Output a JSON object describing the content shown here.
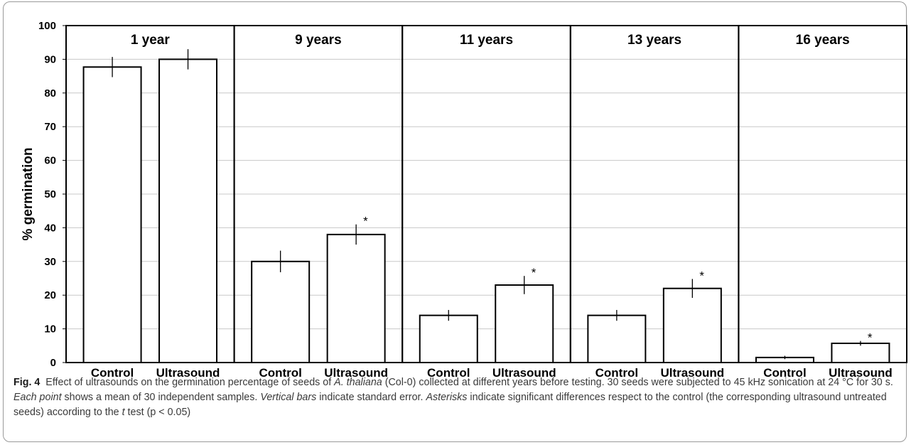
{
  "chart_data": {
    "type": "bar",
    "ylabel": "% germination",
    "ylim": [
      0,
      100
    ],
    "yticks": [
      0,
      10,
      20,
      30,
      40,
      50,
      60,
      70,
      80,
      90,
      100
    ],
    "grid": true,
    "panels": [
      {
        "title": "1 year",
        "categories": [
          "Control",
          "Ultrasound"
        ],
        "values": [
          87.7,
          90.0
        ],
        "errors": [
          3.0,
          3.0
        ],
        "significant": [
          false,
          false
        ]
      },
      {
        "title": "9 years",
        "categories": [
          "Control",
          "Ultrasound"
        ],
        "values": [
          30.0,
          38.0
        ],
        "errors": [
          3.2,
          3.0
        ],
        "significant": [
          false,
          true
        ]
      },
      {
        "title": "11 years",
        "categories": [
          "Control",
          "Ultrasound"
        ],
        "values": [
          14.0,
          23.0
        ],
        "errors": [
          1.6,
          2.7
        ],
        "significant": [
          false,
          true
        ]
      },
      {
        "title": "13 years",
        "categories": [
          "Control",
          "Ultrasound"
        ],
        "values": [
          14.0,
          22.0
        ],
        "errors": [
          1.6,
          2.8
        ],
        "significant": [
          false,
          true
        ]
      },
      {
        "title": "16 years",
        "categories": [
          "Control",
          "Ultrasound"
        ],
        "values": [
          1.5,
          5.7
        ],
        "errors": [
          0.5,
          0.7
        ],
        "significant": [
          false,
          true
        ]
      }
    ],
    "significance_mark": "*"
  },
  "caption": {
    "fig_label": "Fig. 4",
    "segments": [
      {
        "text": "Effect of ultrasounds on the germination percentage of seeds of ",
        "italic": false
      },
      {
        "text": "A. thaliana",
        "italic": true
      },
      {
        "text": " (Col-0) collected at different years before testing. 30 seeds were subjected to 45 kHz sonication at 24 °C for 30 s. ",
        "italic": false
      },
      {
        "text": "Each point",
        "italic": true
      },
      {
        "text": " shows a mean of 30 independent samples. ",
        "italic": false
      },
      {
        "text": "Vertical bars",
        "italic": true
      },
      {
        "text": " indicate standard error. ",
        "italic": false
      },
      {
        "text": "Asterisks",
        "italic": true
      },
      {
        "text": " indicate significant differences respect to the control (the corresponding ultrasound untreated seeds) according to the ",
        "italic": false
      },
      {
        "text": "t",
        "italic": true
      },
      {
        "text": " test (p < 0.05)",
        "italic": false
      }
    ]
  }
}
